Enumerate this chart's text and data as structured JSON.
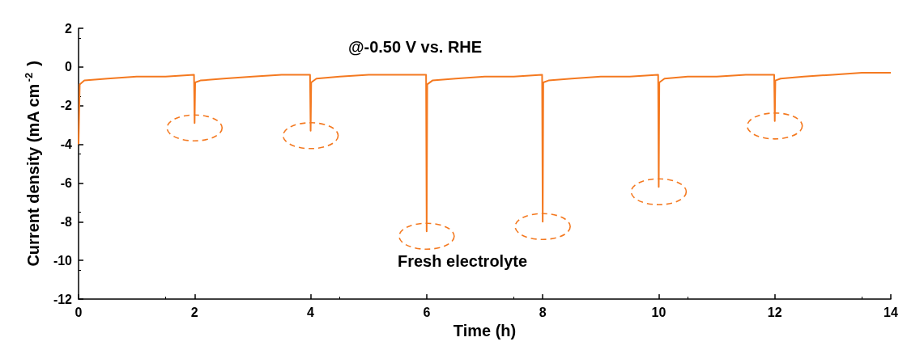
{
  "chart_data": {
    "type": "line",
    "xlabel": "Time (h)",
    "ylabel": "Current density (mA cm$^{-2}$)",
    "annotations": [
      "@-0.50 V vs. RHE",
      "Fresh electrolyte"
    ],
    "x": [
      0,
      0.02,
      0.1,
      0.5,
      1,
      1.5,
      1.99,
      2,
      2.01,
      2.1,
      2.5,
      3,
      3.5,
      3.99,
      4,
      4.01,
      4.1,
      4.5,
      5,
      5.5,
      5.99,
      6,
      6.01,
      6.1,
      6.5,
      7,
      7.5,
      7.99,
      8,
      8.01,
      8.1,
      8.5,
      9,
      9.5,
      9.99,
      10,
      10.01,
      10.1,
      10.5,
      11,
      11.5,
      11.99,
      12,
      12.01,
      12.1,
      12.5,
      13,
      13.5,
      14
    ],
    "series": [
      {
        "color": "#f47920",
        "values": [
          -4.0,
          -0.9,
          -0.7,
          -0.6,
          -0.5,
          -0.5,
          -0.4,
          -2.9,
          -0.8,
          -0.7,
          -0.6,
          -0.5,
          -0.4,
          -0.4,
          -3.3,
          -0.8,
          -0.6,
          -0.5,
          -0.4,
          -0.4,
          -0.4,
          -8.5,
          -0.9,
          -0.7,
          -0.6,
          -0.5,
          -0.5,
          -0.4,
          -8.0,
          -0.8,
          -0.7,
          -0.6,
          -0.5,
          -0.5,
          -0.4,
          -6.2,
          -0.8,
          -0.6,
          -0.5,
          -0.5,
          -0.4,
          -0.4,
          -2.8,
          -0.7,
          -0.6,
          -0.5,
          -0.4,
          -0.3,
          -0.3
        ]
      }
    ],
    "xlim": [
      0,
      14
    ],
    "xticks": [
      0,
      2,
      4,
      6,
      8,
      10,
      12,
      14
    ],
    "ylim": [
      -12,
      2
    ],
    "yticks": [
      -12,
      -10,
      -8,
      -6,
      -4,
      -2,
      0,
      2
    ],
    "grid": false,
    "marker": "none",
    "line_style": "solid"
  }
}
